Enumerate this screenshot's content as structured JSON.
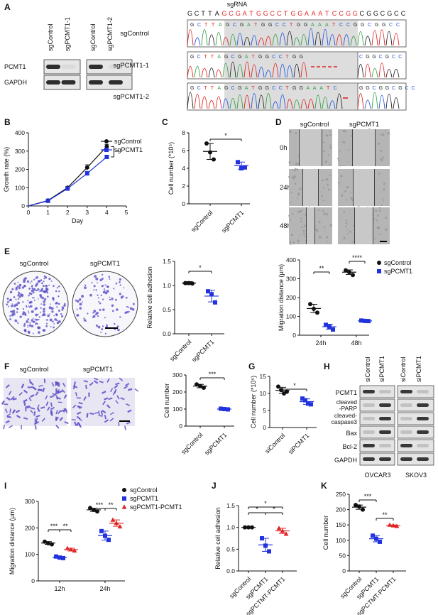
{
  "colors": {
    "black": "#111111",
    "blue": "#2233dd",
    "red": "#e02424",
    "gray_box": "#d4d4d4",
    "dash_red": "#e02424",
    "A": "#2ea043",
    "C": "#2255dd",
    "G": "#222222",
    "T": "#e02020",
    "stain": "#5a4fc8"
  },
  "panelA": {
    "letter": "A",
    "blot_groups": [
      {
        "lanes": [
          "sgControl",
          "sgPCMT1-1"
        ]
      },
      {
        "lanes": [
          "sgControl",
          "sgPCMT1-2"
        ]
      }
    ],
    "blot_rows": [
      "PCMT1",
      "GAPDH"
    ],
    "sgrna_title": "sgRNA",
    "ref_seq": "GCTTAGCGATGGCCTGGAAATCCGGCGGCGCC",
    "traces": [
      {
        "label": "sgControl",
        "seq": "GCTTAGCGATGGCCTGGAAATCCGGCGGCC",
        "cut": false
      },
      {
        "label": "sgPCMT1-1",
        "seq": "GCTTAGCGATGGCCTGG",
        "tail": "CGGCGCC",
        "cut": true
      },
      {
        "label": "sgPCMT1-2",
        "seq": "GCTTAGCGATGGCCTGGAAATC",
        "tail": "GGCGGCGCC",
        "cut": true
      }
    ]
  },
  "panelB": {
    "letter": "B",
    "chart_data": {
      "type": "line",
      "ylabel": "Growth rate (%)",
      "xlabel": "Day",
      "x_ticks": [
        "0",
        "1",
        "2",
        "3",
        "4",
        "5"
      ],
      "y_ticks": [
        "0",
        "100",
        "200",
        "300",
        "400"
      ],
      "xlim": [
        0,
        5
      ],
      "ylim": [
        0,
        400
      ],
      "series": [
        {
          "name": "sgControl",
          "x": [
            1,
            2,
            3,
            4
          ],
          "values": [
            30,
            100,
            210,
            325
          ],
          "err": [
            4,
            6,
            15,
            12
          ]
        },
        {
          "name": "sgPCMT1",
          "x": [
            1,
            2,
            3,
            4
          ],
          "values": [
            28,
            95,
            178,
            268
          ],
          "err": [
            4,
            6,
            10,
            8
          ]
        }
      ],
      "sig": "*"
    }
  },
  "panelC": {
    "letter": "C",
    "chart_data": {
      "type": "scatter",
      "ylabel": "Cell number (*10⁵)",
      "categories": [
        "sgControl",
        "sgPCMT1"
      ],
      "y_ticks": [
        "0",
        "2",
        "4",
        "6",
        "8"
      ],
      "ylim": [
        0,
        8
      ],
      "groups": [
        {
          "name": "sgControl",
          "points": [
            6.8,
            5.8,
            5.0
          ],
          "mean": 5.9,
          "sd": 0.9
        },
        {
          "name": "sgPCMT1",
          "points": [
            4.7,
            4.0,
            4.1
          ],
          "mean": 4.3,
          "sd": 0.4
        }
      ],
      "sig": [
        "*"
      ]
    }
  },
  "panelD": {
    "letter": "D",
    "cols": [
      "sgControl",
      "sgPCMT1"
    ],
    "rows": [
      "0h",
      "24h",
      "48h"
    ]
  },
  "panelE": {
    "letter": "E",
    "dish_labels": [
      "sgControl",
      "sgPCMT1"
    ],
    "adhesion": {
      "type": "scatter",
      "ylabel": "Relative cell adhesion",
      "categories": [
        "sgControl",
        "sgPCMT1"
      ],
      "y_ticks": [
        "0.0",
        "0.5",
        "1.0",
        "1.5"
      ],
      "ylim": [
        0,
        1.5
      ],
      "groups": [
        {
          "name": "sgControl",
          "points": [
            1.05,
            1.05,
            1.04
          ],
          "mean": 1.05,
          "sd": 0.03
        },
        {
          "name": "sgPCMT1",
          "points": [
            0.88,
            0.82,
            0.65
          ],
          "mean": 0.78,
          "sd": 0.12
        }
      ],
      "sig": [
        "*"
      ]
    },
    "migration": {
      "type": "scatter",
      "ylabel": "Migration distance (μm)",
      "categories": [
        "24h",
        "48h"
      ],
      "y_ticks": [
        "0",
        "100",
        "200",
        "300",
        "400"
      ],
      "ylim": [
        0,
        400
      ],
      "legend": [
        "sgControl",
        "sgPCMT1"
      ],
      "groups": [
        {
          "name": "sgControl",
          "cat": 0,
          "points": [
            165,
            140,
            120
          ],
          "mean": 142,
          "sd": 22
        },
        {
          "name": "sgPCMT1",
          "cat": 0,
          "points": [
            55,
            45,
            30
          ],
          "mean": 45,
          "sd": 13
        },
        {
          "name": "sgControl",
          "cat": 1,
          "points": [
            345,
            335,
            320
          ],
          "mean": 335,
          "sd": 12
        },
        {
          "name": "sgPCMT1",
          "cat": 1,
          "points": [
            78,
            76,
            75
          ],
          "mean": 76,
          "sd": 2
        }
      ],
      "sig": [
        "**",
        "****"
      ]
    }
  },
  "panelF": {
    "letter": "F",
    "img_labels": [
      "sgControl",
      "sgPCMT1"
    ],
    "chart_data": {
      "type": "scatter",
      "ylabel": "Cell number",
      "categories": [
        "sgControl",
        "sgPCMT1"
      ],
      "y_ticks": [
        "0",
        "100",
        "200",
        "300"
      ],
      "ylim": [
        0,
        300
      ],
      "groups": [
        {
          "name": "sgControl",
          "points": [
            245,
            235,
            225
          ],
          "mean": 235,
          "sd": 10
        },
        {
          "name": "sgPCMT1",
          "points": [
            102,
            100,
            98
          ],
          "mean": 100,
          "sd": 3
        }
      ],
      "sig": [
        "***"
      ]
    }
  },
  "panelG": {
    "letter": "G",
    "chart_data": {
      "type": "scatter",
      "ylabel": "Cell number (*10⁵)",
      "categories": [
        "siControl",
        "siPCMT1"
      ],
      "y_ticks": [
        "0",
        "5",
        "10",
        "15"
      ],
      "ylim": [
        0,
        15
      ],
      "groups": [
        {
          "name": "siControl",
          "points": [
            12,
            11,
            10,
            10.5
          ],
          "mean": 10.9,
          "sd": 0.9
        },
        {
          "name": "siPCMT1",
          "points": [
            8.5,
            8,
            7,
            6.8
          ],
          "mean": 7.6,
          "sd": 0.8
        }
      ],
      "sig": [
        "*"
      ]
    }
  },
  "panelH": {
    "letter": "H",
    "lanes": [
      "siControl",
      "siPCMT1",
      "siControl",
      "siPCMT1"
    ],
    "rows": [
      "PCMT1",
      "cleaved\n-PARP",
      "cleaved-\ncaspase3",
      "Bax",
      "Bcl-2",
      "GAPDH"
    ],
    "cell_lines": [
      "OVCAR3",
      "SKOV3"
    ]
  },
  "panelI": {
    "letter": "I",
    "chart_data": {
      "type": "scatter",
      "ylabel": "Migration distance (μm)",
      "categories": [
        "12h",
        "24h"
      ],
      "y_ticks": [
        "0",
        "100",
        "200",
        "300"
      ],
      "ylim": [
        0,
        300
      ],
      "legend": [
        "sgControl",
        "sgPCMT1",
        "sgPCMT1-PCMT1"
      ],
      "groups": [
        {
          "name": "sgControl",
          "cat": 0,
          "points": [
            148,
            142,
            138
          ],
          "mean": 143,
          "sd": 5
        },
        {
          "name": "sgPCMT1",
          "cat": 0,
          "points": [
            92,
            88,
            86
          ],
          "mean": 89,
          "sd": 3
        },
        {
          "name": "sgPCMT1-PCMT1",
          "cat": 0,
          "points": [
            123,
            118,
            114
          ],
          "mean": 118,
          "sd": 5
        },
        {
          "name": "sgControl",
          "cat": 1,
          "points": [
            275,
            268,
            262
          ],
          "mean": 268,
          "sd": 6
        },
        {
          "name": "sgPCMT1",
          "cat": 1,
          "points": [
            188,
            170,
            155
          ],
          "mean": 171,
          "sd": 17
        },
        {
          "name": "sgPCMT1-PCMT1",
          "cat": 1,
          "points": [
            230,
            218,
            205
          ],
          "mean": 218,
          "sd": 12
        }
      ],
      "sig": [
        "***",
        "**",
        "***",
        "**"
      ]
    }
  },
  "panelJ": {
    "letter": "J",
    "chart_data": {
      "type": "scatter",
      "ylabel": "Relative cell adhesion",
      "categories": [
        "sgControl",
        "sgPCMT1",
        "sgPCTMT-PCMT1"
      ],
      "y_ticks": [
        "0.0",
        "0.5",
        "1.0",
        "1.5"
      ],
      "ylim": [
        0,
        1.5
      ],
      "groups": [
        {
          "name": "sgControl",
          "points": [
            1.0,
            1.0,
            1.0
          ],
          "mean": 1.0,
          "sd": 0.0
        },
        {
          "name": "sgPCMT1",
          "points": [
            0.75,
            0.58,
            0.45
          ],
          "mean": 0.6,
          "sd": 0.15
        },
        {
          "name": "sgPCTMT-PCMT1",
          "points": [
            0.98,
            0.92,
            0.85
          ],
          "mean": 0.92,
          "sd": 0.06
        }
      ],
      "sig": [
        "*",
        "*",
        "*"
      ]
    }
  },
  "panelK": {
    "letter": "K",
    "chart_data": {
      "type": "scatter",
      "ylabel": "Cell number",
      "categories": [
        "sgControl",
        "sgPCMT1",
        "sgPCTMT-PCMT1"
      ],
      "y_ticks": [
        "0",
        "50",
        "100",
        "150",
        "200",
        "250"
      ],
      "ylim": [
        0,
        250
      ],
      "groups": [
        {
          "name": "sgControl",
          "points": [
            215,
            210,
            200
          ],
          "mean": 208,
          "sd": 7
        },
        {
          "name": "sgPCMT1",
          "points": [
            115,
            105,
            95
          ],
          "mean": 105,
          "sd": 10
        },
        {
          "name": "sgPCTMT-PCMT1",
          "points": [
            150,
            148,
            146
          ],
          "mean": 148,
          "sd": 2
        }
      ],
      "sig": [
        "***",
        "**"
      ]
    }
  }
}
